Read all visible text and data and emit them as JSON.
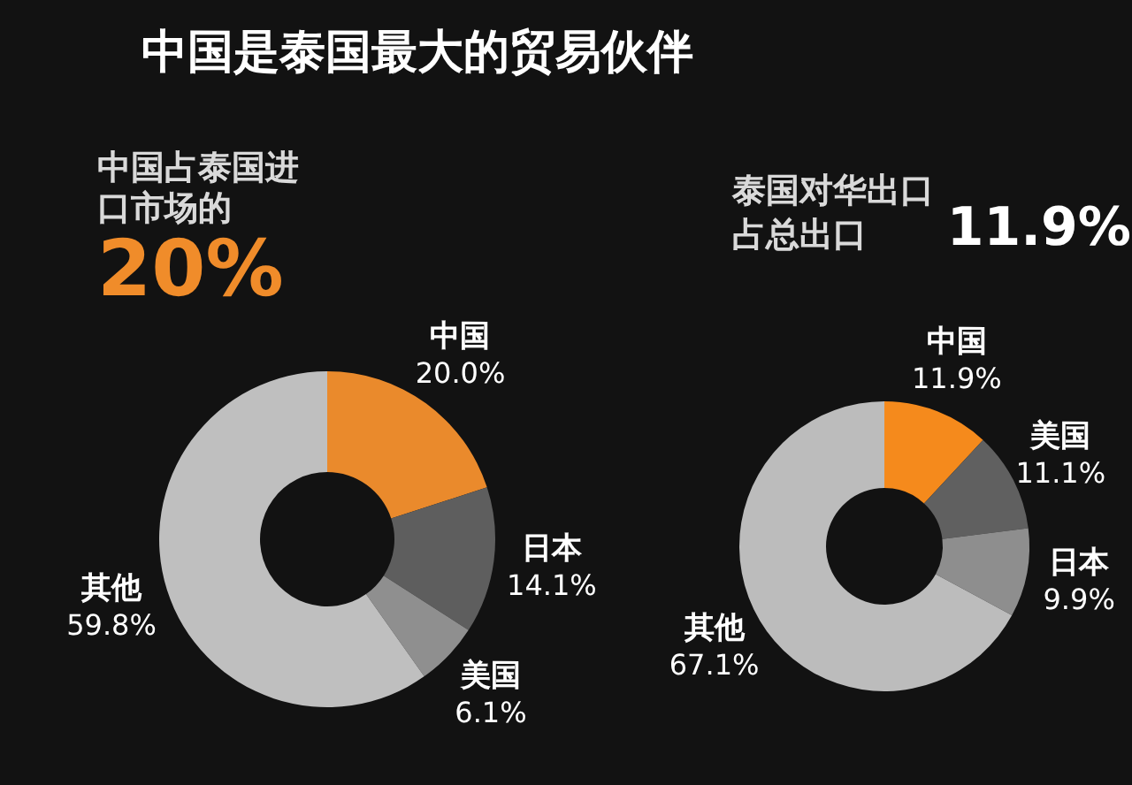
{
  "chart_data": [
    {
      "type": "other",
      "title": "中国是泰国最大的贸易伙伴"
    },
    {
      "type": "donut",
      "title": "中国占泰国进口市场的",
      "annotations": [
        "20%"
      ],
      "categories": [
        "中国",
        "日本",
        "美国",
        "其他"
      ],
      "values": [
        20.0,
        14.1,
        6.1,
        59.8
      ],
      "colors": [
        "#ea8a2c",
        "#5e5e5e",
        "#8f8f8f",
        "#bfbfbf"
      ],
      "value_labels": [
        "20.0%",
        "14.1%",
        "6.1%",
        "59.8%"
      ]
    },
    {
      "type": "donut",
      "title": "泰国对华出口占总出口",
      "annotations": [
        "11.9%"
      ],
      "categories": [
        "中国",
        "美国",
        "日本",
        "其他"
      ],
      "values": [
        11.9,
        11.1,
        9.9,
        67.1
      ],
      "colors": [
        "#f58a1c",
        "#606060",
        "#8e8e8e",
        "#bcbcbc"
      ],
      "value_labels": [
        "11.9%",
        "11.1%",
        "9.9%",
        "67.1%"
      ]
    }
  ]
}
